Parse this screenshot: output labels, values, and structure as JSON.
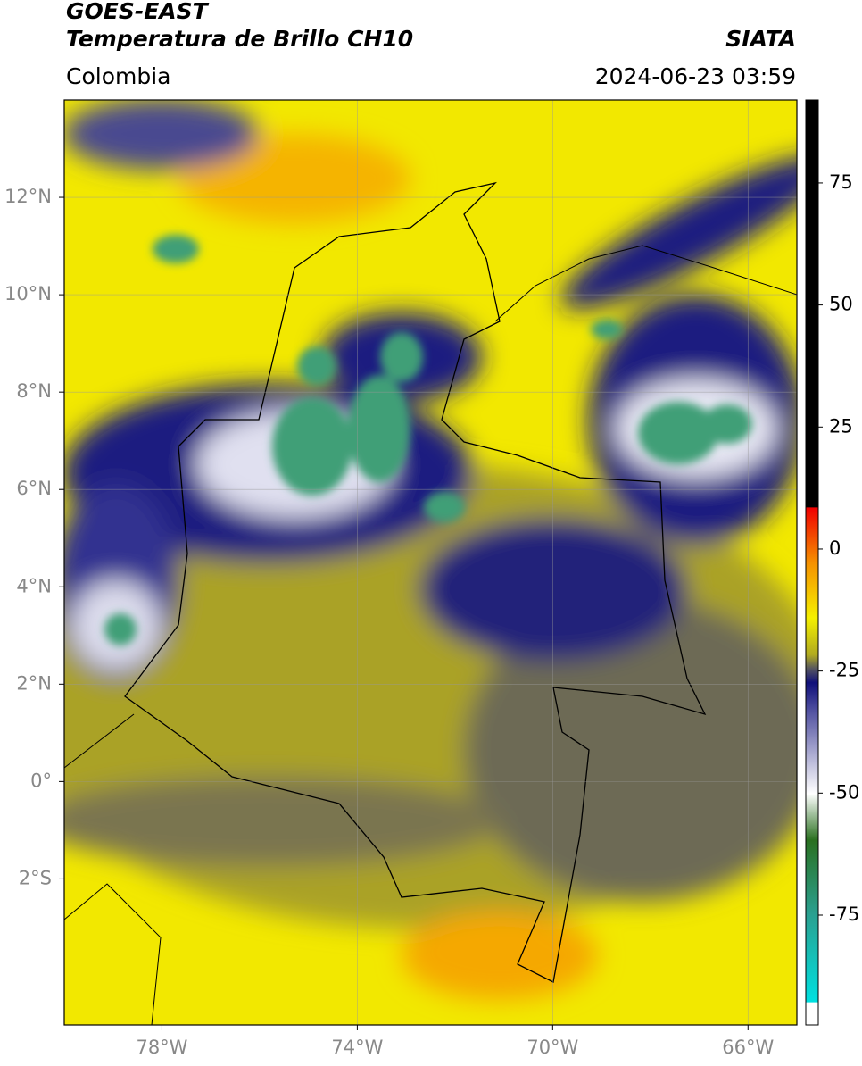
{
  "header": {
    "title": "GOES-EAST",
    "subtitle": "Temperatura de Brillo CH10",
    "source": "SIATA",
    "region": "Colombia",
    "datetime": "2024-06-23 03:59"
  },
  "map": {
    "xlim": [
      -80,
      -65
    ],
    "ylim": [
      -5,
      14
    ],
    "xticks": [
      {
        "value": -78,
        "label": "78°W"
      },
      {
        "value": -74,
        "label": "74°W"
      },
      {
        "value": -70,
        "label": "70°W"
      },
      {
        "value": -66,
        "label": "66°W"
      }
    ],
    "yticks": [
      {
        "value": 12,
        "label": "12°N"
      },
      {
        "value": 10,
        "label": "10°N"
      },
      {
        "value": 8,
        "label": "8°N"
      },
      {
        "value": 6,
        "label": "6°N"
      },
      {
        "value": 4,
        "label": "4°N"
      },
      {
        "value": 2,
        "label": "2°N"
      },
      {
        "value": 0,
        "label": "0°"
      },
      {
        "value": -2,
        "label": "2°S"
      }
    ],
    "grid": true
  },
  "colorbar": {
    "lim": [
      -97.5,
      92
    ],
    "ticks": [
      75,
      50,
      25,
      0,
      -25,
      -50,
      -75
    ]
  }
}
